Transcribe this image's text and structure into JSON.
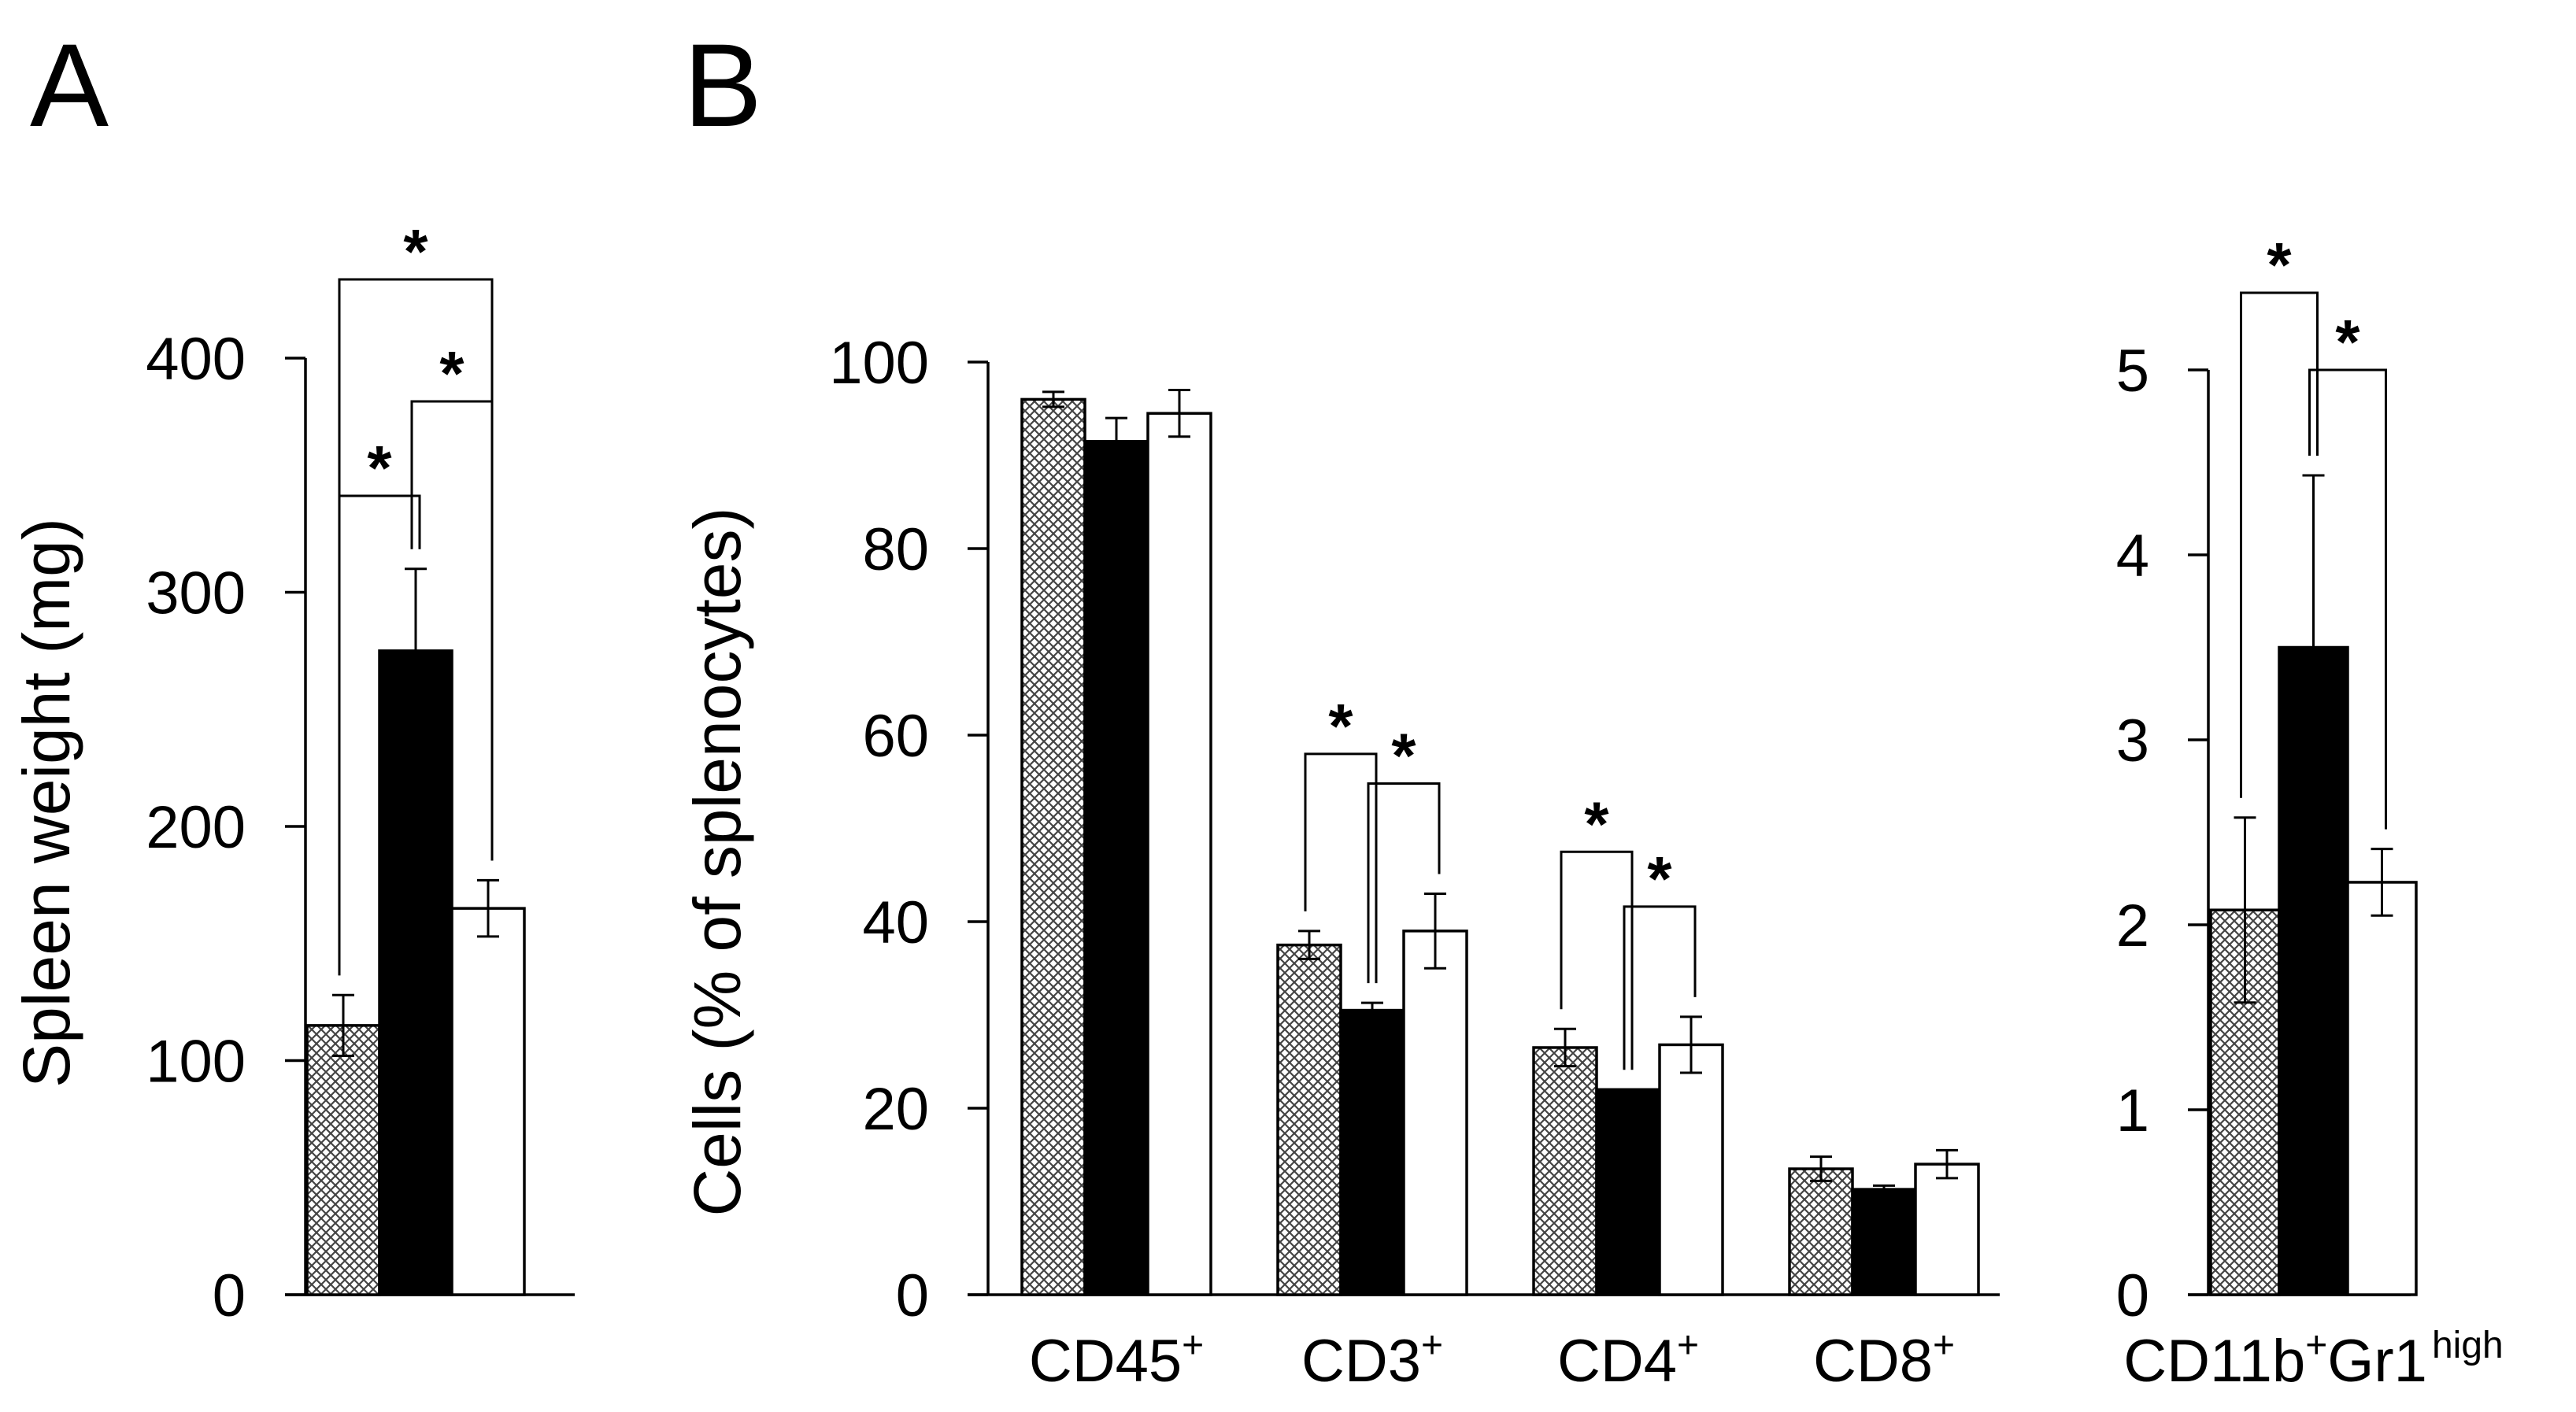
{
  "panels": {
    "a": "A",
    "b": "B"
  },
  "patterns": {
    "group1": "crosshatch",
    "group2": "solid black",
    "group3": "white"
  },
  "chart_data": [
    {
      "id": "A",
      "type": "bar",
      "categories": [
        ""
      ],
      "series": [
        {
          "name": "group1",
          "fill": "crosshatch",
          "values": [
            115
          ],
          "errors": [
            13
          ]
        },
        {
          "name": "group2",
          "fill": "#000000",
          "values": [
            275
          ],
          "errors": [
            35
          ]
        },
        {
          "name": "group3",
          "fill": "#ffffff",
          "values": [
            165
          ],
          "errors": [
            12
          ]
        }
      ],
      "ylabel": "Spleen weight (mg)",
      "ylim": [
        0,
        400
      ],
      "yticks": [
        "0",
        "100",
        "200",
        "300",
        "400"
      ],
      "significance": [
        {
          "pair": [
            0,
            1
          ],
          "label": "*"
        },
        {
          "pair": [
            1,
            2
          ],
          "label": "*"
        },
        {
          "pair": [
            0,
            2
          ],
          "label": "*"
        }
      ]
    },
    {
      "id": "B",
      "type": "bar",
      "categories": [
        {
          "base": "CD45",
          "sup": "+"
        },
        {
          "base": "CD3",
          "sup": "+"
        },
        {
          "base": "CD4",
          "sup": "+"
        },
        {
          "base": "CD8",
          "sup": "+"
        }
      ],
      "series": [
        {
          "name": "group1",
          "fill": "crosshatch",
          "values": [
            96,
            37.5,
            26.5,
            13.5
          ],
          "errors": [
            0.8,
            1.5,
            2,
            1.3
          ]
        },
        {
          "name": "group2",
          "fill": "#000000",
          "values": [
            91.5,
            30.5,
            22,
            11.3
          ],
          "errors": [
            2.5,
            0.8,
            0,
            0.4
          ]
        },
        {
          "name": "group3",
          "fill": "#ffffff",
          "values": [
            94.5,
            39,
            26.8,
            14
          ],
          "errors": [
            2.5,
            4,
            3,
            1.5
          ]
        }
      ],
      "ylabel": "Cells (% of splenocytes)",
      "ylim": [
        0,
        100
      ],
      "yticks": [
        "0",
        "20",
        "40",
        "60",
        "80",
        "100"
      ],
      "significance": [
        {
          "category": 1,
          "pair": [
            0,
            1
          ],
          "label": "*"
        },
        {
          "category": 1,
          "pair": [
            1,
            2
          ],
          "label": "*"
        },
        {
          "category": 2,
          "pair": [
            0,
            1
          ],
          "label": "*"
        },
        {
          "category": 2,
          "pair": [
            1,
            2
          ],
          "label": "*"
        }
      ]
    },
    {
      "id": "B2",
      "type": "bar",
      "categories": [
        {
          "base": "CD11b",
          "sup": "+",
          "base2": "Gr1",
          "sup2": "high"
        }
      ],
      "series": [
        {
          "name": "group1",
          "fill": "crosshatch",
          "values": [
            2.08
          ],
          "errors": [
            0.5
          ]
        },
        {
          "name": "group2",
          "fill": "#000000",
          "values": [
            3.5
          ],
          "errors": [
            0.93
          ]
        },
        {
          "name": "group3",
          "fill": "#ffffff",
          "values": [
            2.23
          ],
          "errors": [
            0.18
          ]
        }
      ],
      "ylabel": "",
      "ylim": [
        0,
        5
      ],
      "yticks": [
        "0",
        "1",
        "2",
        "3",
        "4",
        "5"
      ],
      "significance": [
        {
          "pair": [
            0,
            1
          ],
          "label": "*"
        },
        {
          "pair": [
            1,
            2
          ],
          "label": "*"
        }
      ]
    }
  ]
}
